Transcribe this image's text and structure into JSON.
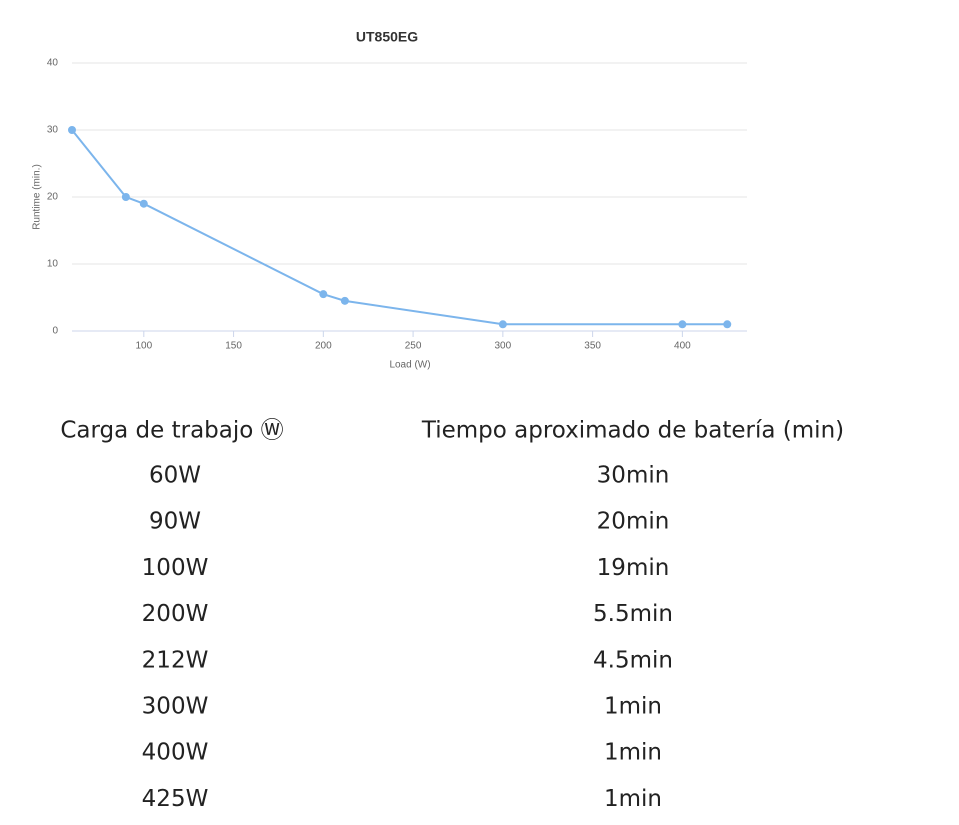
{
  "chart_data": {
    "type": "line",
    "title": "UT850EG",
    "x_label": "Load (W)",
    "y_label": "Runtime (min.)",
    "x": [
      60,
      90,
      100,
      200,
      212,
      300,
      400,
      425
    ],
    "series": [
      {
        "name": "Runtime",
        "color": "#7cb5ec",
        "values": [
          30,
          20,
          19,
          5.5,
          4.5,
          1,
          1,
          1
        ]
      }
    ],
    "xlim": [
      60,
      436
    ],
    "xticks": [
      100,
      150,
      200,
      250,
      300,
      350,
      400
    ],
    "ylim": [
      0,
      40
    ],
    "yticks": [
      0,
      10,
      20,
      30,
      40
    ],
    "grid": true
  },
  "table": {
    "headers": [
      "Carga de trabajo Ⓦ",
      "Tiempo aproximado de batería (min)"
    ],
    "rows": [
      [
        "60W",
        "30min"
      ],
      [
        "90W",
        "20min"
      ],
      [
        "100W",
        "19min"
      ],
      [
        "200W",
        "5.5min"
      ],
      [
        "212W",
        "4.5min"
      ],
      [
        "300W",
        "1min"
      ],
      [
        "400W",
        "1min"
      ],
      [
        "425W",
        "1min"
      ]
    ]
  }
}
